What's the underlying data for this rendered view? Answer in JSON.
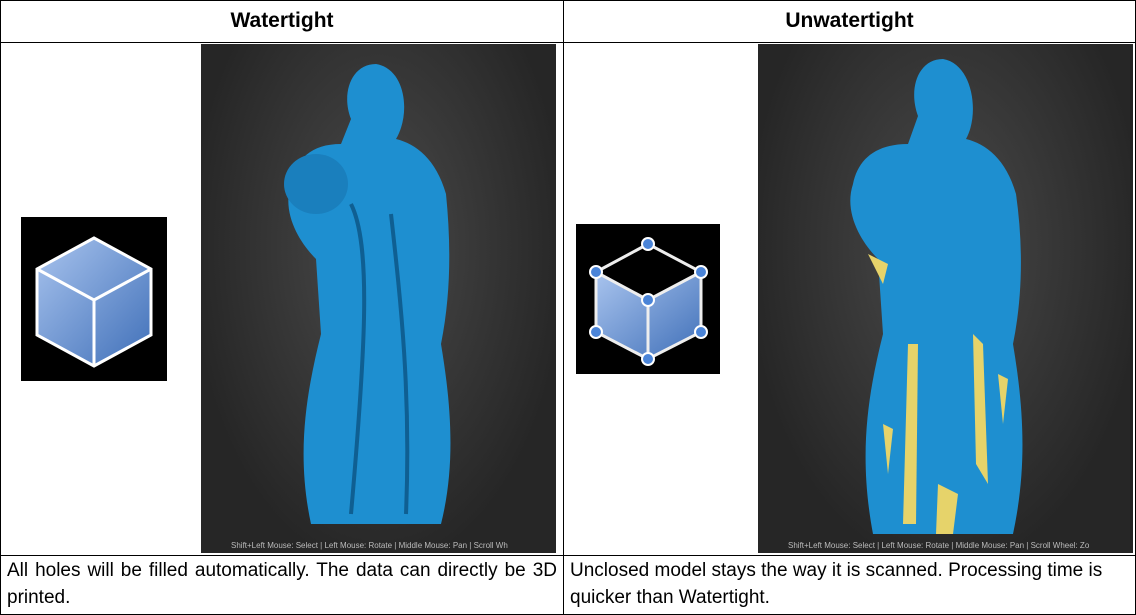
{
  "table": {
    "header": [
      "Watertight",
      "Unwatertight"
    ],
    "status_bars": [
      "Shift+Left Mouse: Select | Left Mouse: Rotate | Middle Mouse: Pan | Scroll Wh",
      "Shift+Left Mouse: Select | Left Mouse: Rotate | Middle Mouse: Pan | Scroll Wheel: Zo"
    ],
    "descriptions": [
      "All holes will be filled automatically. The data can directly be 3D printed.",
      "Unclosed model stays the way it is scanned. Processing time is quicker than Watertight."
    ]
  }
}
